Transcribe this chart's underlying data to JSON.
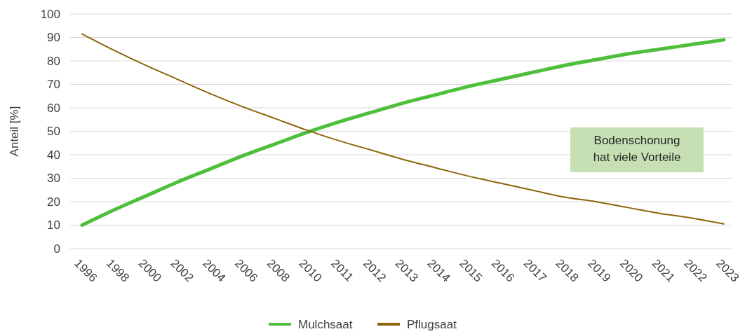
{
  "chart_data": {
    "type": "line",
    "ylabel": "Anteil [%]",
    "categories": [
      "1996",
      "1998",
      "2000",
      "2002",
      "2004",
      "2006",
      "2008",
      "2010",
      "2011",
      "2012",
      "2013",
      "2014",
      "2015",
      "2016",
      "2017",
      "2018",
      "2019",
      "2020",
      "2021",
      "2022",
      "2023"
    ],
    "series": [
      {
        "name": "Mulchsaat",
        "color": "#4dbf3a",
        "values": [
          10,
          16.5,
          22.5,
          28.5,
          34,
          39.5,
          44.5,
          49.5,
          54,
          58,
          62,
          65.5,
          69,
          72,
          75,
          78,
          80.5,
          83,
          85,
          87,
          89
        ]
      },
      {
        "name": "Pflugsaat",
        "color": "#8b6508",
        "values": [
          91.5,
          84.5,
          78,
          72,
          66,
          60.5,
          55.5,
          50.5,
          46,
          42,
          38,
          34.5,
          31,
          28,
          25,
          22,
          20,
          17.5,
          15,
          13,
          10.5
        ]
      }
    ],
    "ylim": [
      0,
      100
    ],
    "yticks": [
      0,
      10,
      20,
      30,
      40,
      50,
      60,
      70,
      80,
      90,
      100
    ],
    "grid": "y",
    "legend": "bottom",
    "marker": "none",
    "line_style": "solid",
    "annotations": [
      "Bodenschonung\nhat viele Vorteile"
    ]
  }
}
